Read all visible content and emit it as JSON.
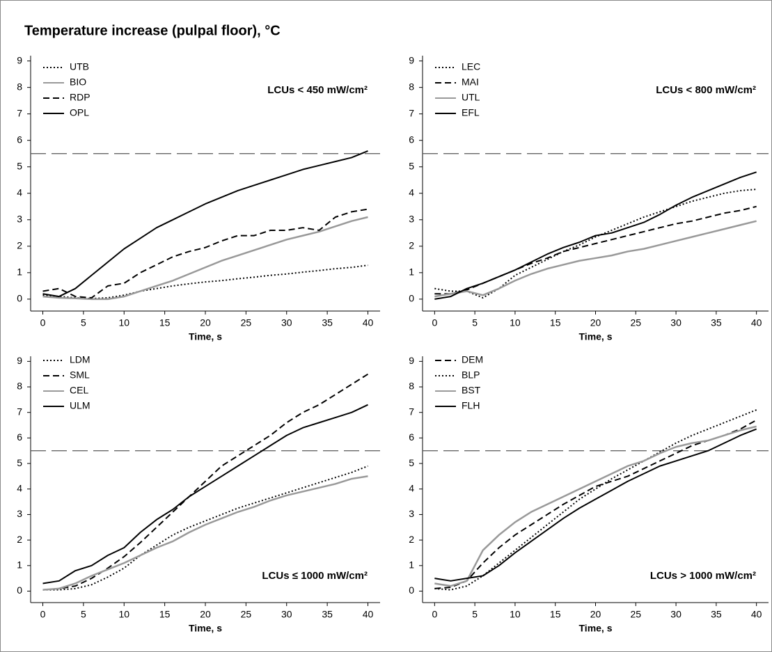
{
  "title": "Temperature increase (pulpal floor), °C",
  "chart_data": [
    {
      "type": "line",
      "annotation": "LCUs < 450 mW/cm²",
      "annotation_corner": "upper right",
      "legend": "upper left",
      "xlabel": "Time, s",
      "xlim": [
        -1.5,
        41.5
      ],
      "ylim": [
        -0.45,
        9.2
      ],
      "xticks": [
        0,
        5,
        10,
        15,
        20,
        25,
        30,
        35,
        40
      ],
      "yticks": [
        0,
        1,
        2,
        3,
        4,
        5,
        6,
        7,
        8,
        9
      ],
      "reference_line": 5.5,
      "x": [
        0,
        2,
        4,
        6,
        8,
        10,
        12,
        14,
        16,
        18,
        20,
        22,
        24,
        26,
        28,
        30,
        32,
        34,
        36,
        38,
        40
      ],
      "series": [
        {
          "name": "UTB",
          "color": "#000000",
          "dash": "dotted",
          "values": [
            0.15,
            0.1,
            0.05,
            0.02,
            0.05,
            0.15,
            0.3,
            0.4,
            0.5,
            0.58,
            0.65,
            0.7,
            0.77,
            0.83,
            0.9,
            0.95,
            1.02,
            1.08,
            1.15,
            1.2,
            1.28
          ]
        },
        {
          "name": "BIO",
          "color": "#999999",
          "dash": "solid",
          "values": [
            0.1,
            0.05,
            0.03,
            0,
            0,
            0.1,
            0.3,
            0.5,
            0.7,
            0.95,
            1.2,
            1.45,
            1.65,
            1.85,
            2.05,
            2.25,
            2.4,
            2.55,
            2.75,
            2.95,
            3.1
          ]
        },
        {
          "name": "RDP",
          "color": "#000000",
          "dash": "dashed",
          "values": [
            0.3,
            0.4,
            0.1,
            0.05,
            0.5,
            0.6,
            1.0,
            1.3,
            1.6,
            1.8,
            1.95,
            2.2,
            2.4,
            2.4,
            2.6,
            2.6,
            2.7,
            2.6,
            3.1,
            3.3,
            3.4
          ]
        },
        {
          "name": "OPL",
          "color": "#000000",
          "dash": "solid",
          "values": [
            0.2,
            0.1,
            0.4,
            0.9,
            1.4,
            1.9,
            2.3,
            2.7,
            3.0,
            3.3,
            3.6,
            3.85,
            4.1,
            4.3,
            4.5,
            4.7,
            4.9,
            5.05,
            5.2,
            5.35,
            5.6
          ]
        }
      ]
    },
    {
      "type": "line",
      "annotation": "LCUs < 800 mW/cm²",
      "annotation_corner": "upper right",
      "legend": "upper left",
      "xlabel": "Time, s",
      "xlim": [
        -1.5,
        41.5
      ],
      "ylim": [
        -0.45,
        9.2
      ],
      "xticks": [
        0,
        5,
        10,
        15,
        20,
        25,
        30,
        35,
        40
      ],
      "yticks": [
        0,
        1,
        2,
        3,
        4,
        5,
        6,
        7,
        8,
        9
      ],
      "reference_line": 5.5,
      "x": [
        0,
        2,
        4,
        6,
        8,
        10,
        12,
        14,
        16,
        18,
        20,
        22,
        24,
        26,
        28,
        30,
        32,
        34,
        36,
        38,
        40
      ],
      "series": [
        {
          "name": "LEC",
          "color": "#000000",
          "dash": "dotted",
          "values": [
            0.4,
            0.3,
            0.3,
            0.05,
            0.4,
            0.9,
            1.2,
            1.5,
            1.8,
            2.05,
            2.35,
            2.6,
            2.85,
            3.1,
            3.3,
            3.5,
            3.7,
            3.85,
            4.0,
            4.1,
            4.15
          ]
        },
        {
          "name": "MAI",
          "color": "#000000",
          "dash": "dashed",
          "values": [
            0.2,
            0.2,
            0.35,
            0.6,
            0.85,
            1.1,
            1.35,
            1.55,
            1.8,
            1.95,
            2.1,
            2.25,
            2.4,
            2.55,
            2.7,
            2.85,
            2.95,
            3.1,
            3.25,
            3.35,
            3.5
          ]
        },
        {
          "name": "UTL",
          "color": "#999999",
          "dash": "solid",
          "values": [
            0.1,
            0.2,
            0.3,
            0.15,
            0.4,
            0.7,
            0.95,
            1.15,
            1.3,
            1.45,
            1.55,
            1.65,
            1.8,
            1.9,
            2.05,
            2.2,
            2.35,
            2.5,
            2.65,
            2.8,
            2.95
          ]
        },
        {
          "name": "EFL",
          "color": "#000000",
          "dash": "solid",
          "values": [
            0.0,
            0.1,
            0.4,
            0.6,
            0.85,
            1.1,
            1.4,
            1.7,
            1.95,
            2.15,
            2.4,
            2.5,
            2.7,
            2.9,
            3.2,
            3.55,
            3.85,
            4.1,
            4.35,
            4.6,
            4.8
          ]
        }
      ]
    },
    {
      "type": "line",
      "annotation": "LCUs ≤ 1000 mW/cm²",
      "annotation_corner": "lower right",
      "legend": "upper left",
      "xlabel": "Time, s",
      "xlim": [
        -1.5,
        41.5
      ],
      "ylim": [
        -0.45,
        9.2
      ],
      "xticks": [
        0,
        5,
        10,
        15,
        20,
        25,
        30,
        35,
        40
      ],
      "yticks": [
        0,
        1,
        2,
        3,
        4,
        5,
        6,
        7,
        8,
        9
      ],
      "reference_line": 5.5,
      "x": [
        0,
        2,
        4,
        6,
        8,
        10,
        12,
        14,
        16,
        18,
        20,
        22,
        24,
        26,
        28,
        30,
        32,
        34,
        36,
        38,
        40
      ],
      "series": [
        {
          "name": "LDM",
          "color": "#000000",
          "dash": "dotted",
          "values": [
            0.05,
            0.05,
            0.1,
            0.25,
            0.55,
            0.9,
            1.4,
            1.8,
            2.2,
            2.5,
            2.75,
            3.0,
            3.25,
            3.45,
            3.65,
            3.85,
            4.05,
            4.25,
            4.45,
            4.65,
            4.9
          ]
        },
        {
          "name": "SML",
          "color": "#000000",
          "dash": "dashed",
          "values": [
            0.05,
            0.1,
            0.2,
            0.5,
            0.9,
            1.35,
            1.9,
            2.5,
            3.1,
            3.7,
            4.3,
            4.9,
            5.3,
            5.7,
            6.1,
            6.6,
            7.0,
            7.3,
            7.7,
            8.1,
            8.5
          ]
        },
        {
          "name": "CEL",
          "color": "#999999",
          "dash": "solid",
          "values": [
            0.05,
            0.1,
            0.3,
            0.6,
            0.85,
            1.1,
            1.4,
            1.7,
            1.95,
            2.3,
            2.6,
            2.85,
            3.1,
            3.3,
            3.55,
            3.75,
            3.9,
            4.05,
            4.2,
            4.4,
            4.5
          ]
        },
        {
          "name": "ULM",
          "color": "#000000",
          "dash": "solid",
          "values": [
            0.3,
            0.4,
            0.8,
            1.0,
            1.4,
            1.7,
            2.3,
            2.8,
            3.2,
            3.7,
            4.1,
            4.5,
            4.9,
            5.3,
            5.7,
            6.1,
            6.4,
            6.6,
            6.8,
            7.0,
            7.3
          ]
        }
      ]
    },
    {
      "type": "line",
      "annotation": "LCUs > 1000 mW/cm²",
      "annotation_corner": "lower right",
      "legend": "upper left",
      "xlabel": "Time, s",
      "xlim": [
        -1.5,
        41.5
      ],
      "ylim": [
        -0.45,
        9.2
      ],
      "xticks": [
        0,
        5,
        10,
        15,
        20,
        25,
        30,
        35,
        40
      ],
      "yticks": [
        0,
        1,
        2,
        3,
        4,
        5,
        6,
        7,
        8,
        9
      ],
      "reference_line": 5.5,
      "x": [
        0,
        2,
        4,
        6,
        8,
        10,
        12,
        14,
        16,
        18,
        20,
        22,
        24,
        26,
        28,
        30,
        32,
        34,
        36,
        38,
        40
      ],
      "series": [
        {
          "name": "DEM",
          "color": "#000000",
          "dash": "dashed",
          "values": [
            0.1,
            0.15,
            0.4,
            1.1,
            1.7,
            2.2,
            2.6,
            3.0,
            3.4,
            3.75,
            4.1,
            4.3,
            4.5,
            4.8,
            5.1,
            5.4,
            5.7,
            5.9,
            6.1,
            6.35,
            6.7
          ]
        },
        {
          "name": "BLP",
          "color": "#000000",
          "dash": "dotted",
          "values": [
            0.1,
            0.05,
            0.2,
            0.6,
            1.1,
            1.6,
            2.1,
            2.6,
            3.1,
            3.6,
            4.0,
            4.4,
            4.75,
            5.1,
            5.45,
            5.8,
            6.1,
            6.35,
            6.6,
            6.85,
            7.1
          ]
        },
        {
          "name": "BST",
          "color": "#999999",
          "dash": "solid",
          "values": [
            0.3,
            0.2,
            0.4,
            1.6,
            2.2,
            2.7,
            3.1,
            3.4,
            3.7,
            4.0,
            4.3,
            4.6,
            4.9,
            5.1,
            5.4,
            5.65,
            5.8,
            5.9,
            6.1,
            6.3,
            6.45
          ]
        },
        {
          "name": "FLH",
          "color": "#000000",
          "dash": "solid",
          "values": [
            0.5,
            0.4,
            0.5,
            0.6,
            1.0,
            1.5,
            1.95,
            2.4,
            2.85,
            3.25,
            3.6,
            3.95,
            4.3,
            4.6,
            4.9,
            5.1,
            5.3,
            5.5,
            5.8,
            6.1,
            6.35
          ]
        }
      ]
    }
  ]
}
